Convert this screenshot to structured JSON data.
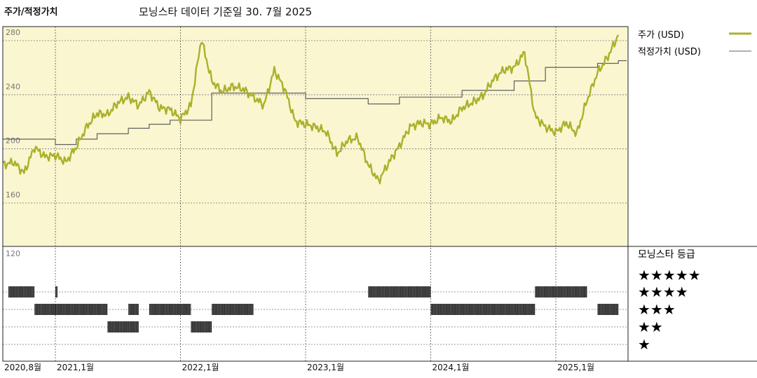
{
  "header": {
    "title": "주가/적정가치",
    "subtitle": "모닝스타 데이터 기준일 30. 7월 2025"
  },
  "legend": {
    "price_label": "주가 (USD)",
    "fair_label": "적정가치 (USD)",
    "rating_title": "모닝스타 등급",
    "stars": [
      "★★★★★",
      "★★★★",
      "★★★",
      "★★",
      "★"
    ]
  },
  "colors": {
    "price_line": "#aab12a",
    "fair_line": "#606060",
    "plot_bg": "#faf6d0",
    "rating_bar": "#2a2a2a"
  },
  "chart_data": {
    "type": "line",
    "x_ticks": [
      "2020,8월",
      "2021,1월",
      "2022,1월",
      "2023,1월",
      "2024,1월",
      "2025,1월"
    ],
    "y_ticks": [
      280,
      240,
      200,
      160,
      120
    ],
    "ylim": [
      120,
      285
    ],
    "series": [
      {
        "name": "주가 (USD)",
        "points": [
          [
            "2020-08",
            182
          ],
          [
            "2020-09",
            184
          ],
          [
            "2020-10",
            176
          ],
          [
            "2020-11",
            195
          ],
          [
            "2020-12",
            188
          ],
          [
            "2021-01",
            189
          ],
          [
            "2021-02",
            184
          ],
          [
            "2021-03",
            195
          ],
          [
            "2021-04",
            210
          ],
          [
            "2021-05",
            220
          ],
          [
            "2021-06",
            219
          ],
          [
            "2021-07",
            228
          ],
          [
            "2021-08",
            232
          ],
          [
            "2021-09",
            226
          ],
          [
            "2021-10",
            236
          ],
          [
            "2021-11",
            224
          ],
          [
            "2021-12",
            223
          ],
          [
            "2022-01",
            216
          ],
          [
            "2022-02",
            226
          ],
          [
            "2022-03",
            275
          ],
          [
            "2022-04",
            244
          ],
          [
            "2022-05",
            236
          ],
          [
            "2022-06",
            240
          ],
          [
            "2022-07",
            238
          ],
          [
            "2022-08",
            232
          ],
          [
            "2022-09",
            226
          ],
          [
            "2022-10",
            252
          ],
          [
            "2022-11",
            238
          ],
          [
            "2022-12",
            214
          ],
          [
            "2023-01",
            212
          ],
          [
            "2023-02",
            210
          ],
          [
            "2023-03",
            206
          ],
          [
            "2023-04",
            190
          ],
          [
            "2023-05",
            200
          ],
          [
            "2023-06",
            202
          ],
          [
            "2023-07",
            182
          ],
          [
            "2023-08",
            170
          ],
          [
            "2023-09",
            184
          ],
          [
            "2023-10",
            196
          ],
          [
            "2023-11",
            210
          ],
          [
            "2023-12",
            213
          ],
          [
            "2024-01",
            212
          ],
          [
            "2024-02",
            217
          ],
          [
            "2024-03",
            214
          ],
          [
            "2024-04",
            224
          ],
          [
            "2024-05",
            228
          ],
          [
            "2024-06",
            233
          ],
          [
            "2024-07",
            245
          ],
          [
            "2024-08",
            252
          ],
          [
            "2024-09",
            254
          ],
          [
            "2024-10",
            265
          ],
          [
            "2024-11",
            218
          ],
          [
            "2024-12",
            210
          ],
          [
            "2025-01",
            206
          ],
          [
            "2025-02",
            213
          ],
          [
            "2025-03",
            205
          ],
          [
            "2025-04",
            230
          ],
          [
            "2025-05",
            250
          ],
          [
            "2025-06",
            262
          ],
          [
            "2025-07",
            278
          ]
        ]
      },
      {
        "name": "적정가치 (USD)",
        "points": [
          [
            "2020-08",
            201
          ],
          [
            "2020-12",
            201
          ],
          [
            "2021-01",
            197
          ],
          [
            "2021-02",
            197
          ],
          [
            "2021-03",
            201
          ],
          [
            "2021-05",
            205
          ],
          [
            "2021-08",
            209
          ],
          [
            "2021-10",
            212
          ],
          [
            "2021-12",
            215
          ],
          [
            "2022-04",
            235
          ],
          [
            "2022-07",
            235
          ],
          [
            "2023-01",
            231
          ],
          [
            "2023-07",
            227
          ],
          [
            "2023-10",
            232
          ],
          [
            "2024-04",
            237
          ],
          [
            "2024-09",
            244
          ],
          [
            "2024-12",
            254
          ],
          [
            "2025-05",
            257
          ],
          [
            "2025-07",
            259
          ]
        ]
      }
    ]
  }
}
